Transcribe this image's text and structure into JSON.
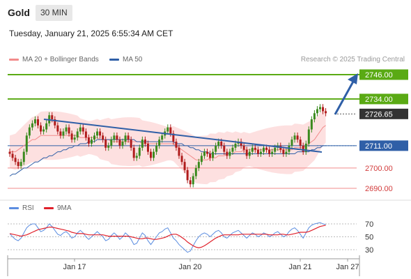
{
  "header": {
    "title": "Gold",
    "timeframe": "30 MIN",
    "datetime": "Tuesday, January 21, 2025 6:55:34 AM CET",
    "credit": "Research © 2025 Trading Central"
  },
  "colors": {
    "green": "#5aaa14",
    "blue": "#2f5fa7",
    "red": "#f28b8b",
    "band": "#fde0e0",
    "rsi": "#5b8de0",
    "ma9": "#e0202a"
  },
  "chart_data": [
    {
      "type": "candlestick",
      "title": "",
      "legend": [
        {
          "name": "MA 20 + Bollinger Bands",
          "color": "#f28b8b"
        },
        {
          "name": "MA 50",
          "color": "#2f5fa7"
        }
      ],
      "x_ticks": [
        "Jan 17",
        "Jan 20",
        "Jan 21",
        "Jan 27"
      ],
      "levels": [
        {
          "value": 2746.0,
          "label": "2746.00",
          "kind": "resistance",
          "color": "#5aaa14"
        },
        {
          "value": 2734.0,
          "label": "2734.00",
          "kind": "resistance",
          "color": "#5aaa14"
        },
        {
          "value": 2726.65,
          "label": "2726.65",
          "kind": "last_price",
          "color": "#333333"
        },
        {
          "value": 2711.0,
          "label": "2711.00",
          "kind": "pivot",
          "color": "#2f5fa7"
        },
        {
          "value": 2700.0,
          "label": "2700.00",
          "kind": "support",
          "color": "#f28b8b"
        },
        {
          "value": 2690.0,
          "label": "2690.00",
          "kind": "support",
          "color": "#f28b8b"
        }
      ],
      "close": [
        2707,
        2705,
        2703,
        2701,
        2703,
        2708,
        2716,
        2720,
        2722,
        2724,
        2721,
        2718,
        2719,
        2722,
        2726,
        2724,
        2721,
        2718,
        2716,
        2718,
        2720,
        2717,
        2714,
        2715,
        2718,
        2720,
        2718,
        2715,
        2712,
        2714,
        2716,
        2718,
        2716,
        2714,
        2710,
        2711,
        2714,
        2716,
        2714,
        2711,
        2713,
        2716,
        2714,
        2710,
        2705,
        2706,
        2710,
        2714,
        2712,
        2708,
        2705,
        2708,
        2711,
        2714,
        2716,
        2718,
        2720,
        2717,
        2713,
        2710,
        2706,
        2703,
        2699,
        2694,
        2692,
        2696,
        2700,
        2703,
        2706,
        2708,
        2707,
        2705,
        2708,
        2711,
        2713,
        2711,
        2708,
        2706,
        2708,
        2710,
        2712,
        2713,
        2711,
        2709,
        2706,
        2708,
        2710,
        2709,
        2707,
        2708,
        2710,
        2709,
        2707,
        2708,
        2710,
        2711,
        2709,
        2707,
        2708,
        2711,
        2714,
        2716,
        2714,
        2711,
        2708,
        2712,
        2719,
        2724,
        2727,
        2729,
        2730,
        2728,
        2727
      ],
      "ma20": [
        2708,
        2708,
        2708,
        2709,
        2710,
        2711,
        2712,
        2713,
        2714,
        2714,
        2715,
        2716,
        2716,
        2716,
        2716,
        2716,
        2716,
        2716,
        2716,
        2716,
        2716,
        2716,
        2716,
        2716,
        2716,
        2715,
        2715,
        2715,
        2715,
        2715,
        2715,
        2715,
        2714,
        2714,
        2714,
        2714,
        2713,
        2713,
        2713,
        2713,
        2713,
        2713,
        2713,
        2713,
        2713,
        2713,
        2713,
        2712,
        2712,
        2712,
        2712,
        2712,
        2712,
        2712,
        2712,
        2712,
        2712,
        2712,
        2712,
        2711,
        2710,
        2709,
        2708,
        2707,
        2706,
        2705,
        2704,
        2704,
        2704,
        2704,
        2704,
        2705,
        2705,
        2705,
        2706,
        2706,
        2706,
        2707,
        2707,
        2707,
        2708,
        2708,
        2708,
        2709,
        2709,
        2709,
        2709,
        2709,
        2709,
        2709,
        2709,
        2709,
        2709,
        2709,
        2709,
        2709,
        2709,
        2709,
        2709,
        2709,
        2709,
        2710,
        2710,
        2710,
        2710,
        2711,
        2712,
        2713,
        2714,
        2716,
        2718,
        2720,
        2721
      ],
      "ma50": [
        2696,
        2697,
        2697,
        2698,
        2699,
        2700,
        2700,
        2701,
        2702,
        2703,
        2703,
        2704,
        2705,
        2705,
        2706,
        2706,
        2707,
        2708,
        2708,
        2709,
        2709,
        2710,
        2710,
        2711,
        2711,
        2712,
        2712,
        2712,
        2713,
        2713,
        2713,
        2714,
        2714,
        2714,
        2714,
        2714,
        2714,
        2714,
        2714,
        2714,
        2714,
        2714,
        2714,
        2714,
        2714,
        2713,
        2713,
        2713,
        2713,
        2713,
        2713,
        2713,
        2713,
        2713,
        2713,
        2713,
        2713,
        2713,
        2713,
        2712,
        2712,
        2712,
        2711,
        2711,
        2710,
        2710,
        2709,
        2709,
        2708,
        2708,
        2708,
        2707,
        2707,
        2707,
        2707,
        2707,
        2707,
        2707,
        2707,
        2707,
        2707,
        2707,
        2707,
        2707,
        2707,
        2707,
        2707,
        2707,
        2707,
        2707,
        2707,
        2707,
        2707,
        2707,
        2707,
        2707,
        2707,
        2707,
        2707,
        2707,
        2707,
        2707,
        2708,
        2708,
        2708,
        2708,
        2708,
        2709,
        2709,
        2710,
        2710,
        2711,
        2711
      ]
    },
    {
      "type": "line",
      "title": "",
      "legend": [
        {
          "name": "RSI",
          "color": "#5b8de0"
        },
        {
          "name": "9MA",
          "color": "#e0202a"
        }
      ],
      "y_ticks": [
        "70",
        "50",
        "30"
      ],
      "ylim": [
        20,
        80
      ],
      "rsi": [
        55,
        50,
        46,
        44,
        48,
        56,
        64,
        68,
        70,
        70,
        64,
        58,
        60,
        64,
        70,
        66,
        60,
        54,
        52,
        56,
        58,
        54,
        48,
        50,
        56,
        60,
        56,
        50,
        46,
        50,
        54,
        58,
        54,
        50,
        44,
        46,
        52,
        56,
        52,
        46,
        50,
        56,
        52,
        46,
        38,
        40,
        48,
        56,
        52,
        44,
        38,
        44,
        50,
        56,
        58,
        62,
        64,
        56,
        48,
        44,
        38,
        34,
        30,
        26,
        28,
        36,
        44,
        50,
        54,
        56,
        54,
        50,
        54,
        58,
        60,
        56,
        50,
        48,
        52,
        56,
        58,
        60,
        56,
        52,
        48,
        52,
        56,
        54,
        50,
        52,
        56,
        54,
        50,
        52,
        56,
        58,
        54,
        50,
        52,
        58,
        62,
        64,
        60,
        54,
        48,
        56,
        64,
        68,
        70,
        71,
        72,
        70,
        69
      ],
      "ma9": [
        55,
        54,
        53,
        52,
        51,
        52,
        53,
        55,
        57,
        59,
        61,
        62,
        63,
        64,
        65,
        65,
        64,
        63,
        62,
        61,
        60,
        59,
        57,
        56,
        55,
        55,
        55,
        54,
        53,
        53,
        53,
        53,
        53,
        53,
        52,
        51,
        51,
        51,
        51,
        51,
        51,
        51,
        51,
        50,
        49,
        48,
        47,
        47,
        48,
        48,
        47,
        46,
        46,
        47,
        48,
        49,
        51,
        53,
        54,
        54,
        52,
        49,
        46,
        42,
        39,
        36,
        34,
        33,
        34,
        36,
        39,
        42,
        45,
        48,
        50,
        52,
        53,
        53,
        53,
        53,
        53,
        53,
        54,
        54,
        54,
        54,
        54,
        54,
        54,
        54,
        54,
        54,
        53,
        53,
        53,
        53,
        54,
        54,
        53,
        53,
        54,
        55,
        56,
        57,
        57,
        57,
        58,
        60,
        62,
        64,
        66,
        67,
        68
      ]
    }
  ]
}
